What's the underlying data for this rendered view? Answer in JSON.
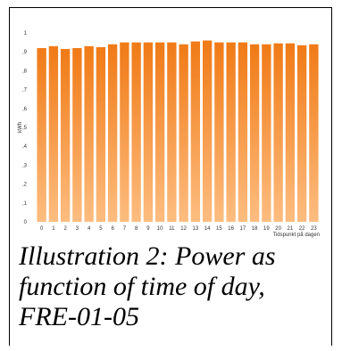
{
  "caption": "Illustration 2: Power as function of time of day, FRE-01-05",
  "chart_data": {
    "type": "bar",
    "categories": [
      "0",
      "1",
      "2",
      "3",
      "4",
      "5",
      "6",
      "7",
      "8",
      "9",
      "10",
      "11",
      "12",
      "13",
      "14",
      "15",
      "16",
      "17",
      "18",
      "19",
      "20",
      "21",
      "22",
      "23"
    ],
    "values": [
      0.92,
      0.93,
      0.915,
      0.92,
      0.93,
      0.925,
      0.94,
      0.95,
      0.95,
      0.95,
      0.95,
      0.95,
      0.94,
      0.955,
      0.96,
      0.95,
      0.95,
      0.95,
      0.94,
      0.94,
      0.945,
      0.945,
      0.935,
      0.94
    ],
    "ylabel": "kWh",
    "xlabel": "Tidspunkt på dagen",
    "ylim": [
      0,
      1
    ],
    "yticks": [
      0,
      0.1,
      0.2,
      0.3,
      0.4,
      0.5,
      0.6,
      0.7,
      0.8,
      0.9,
      1
    ],
    "ytick_labels": [
      "0",
      ",1",
      ",2",
      ",3",
      ",4",
      ",5",
      ",6",
      ",7",
      ",8",
      ",9",
      "1"
    ],
    "grid": false,
    "colors": {
      "bar_top": "#f07a16",
      "bar_bottom": "#fdbd80",
      "axis": "#888888"
    }
  }
}
